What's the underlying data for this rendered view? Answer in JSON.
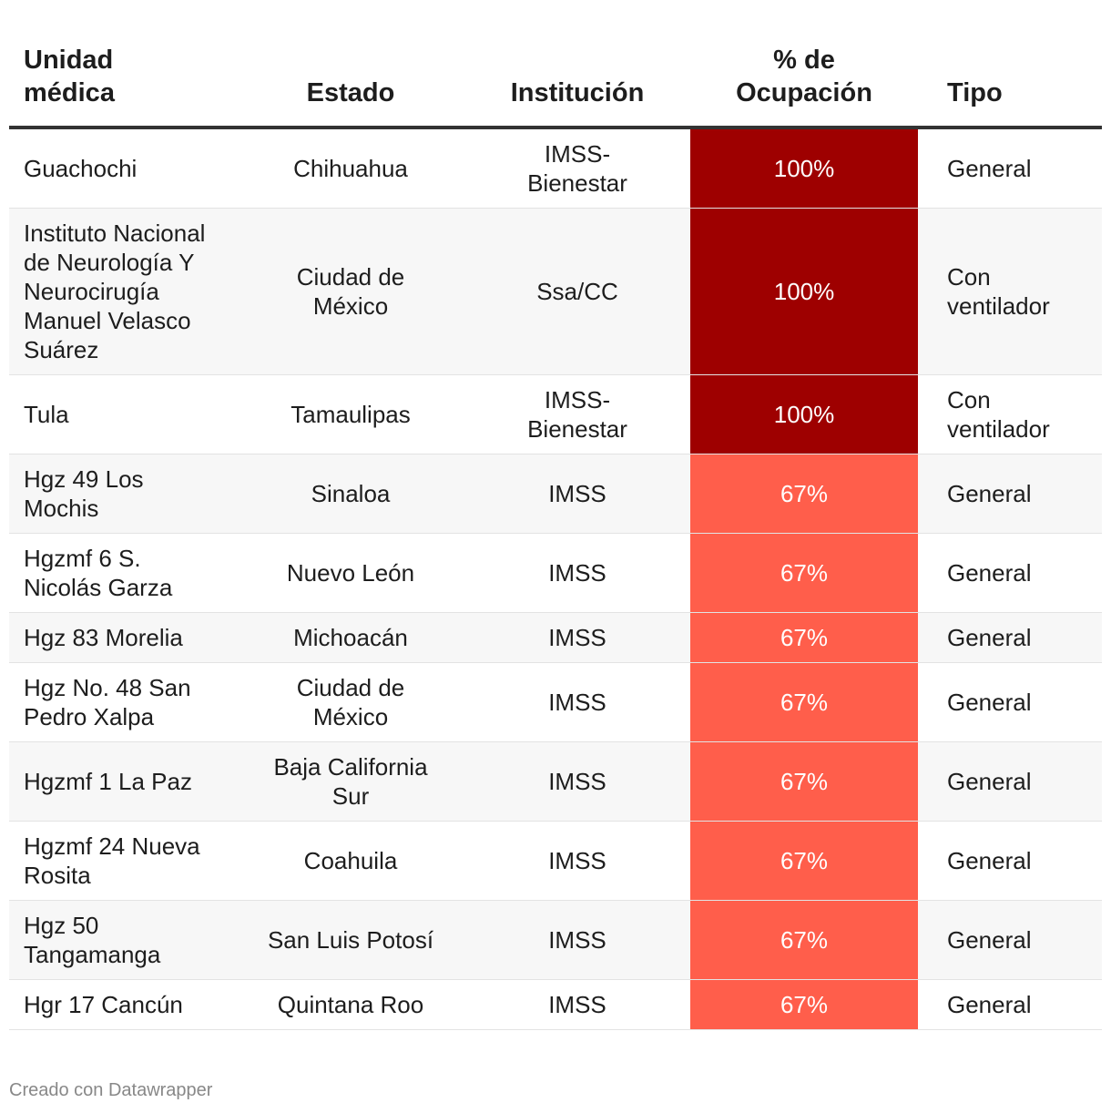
{
  "chart_data": {
    "type": "table",
    "columns": [
      "Unidad médica",
      "Estado",
      "Institución",
      "% de Ocupación",
      "Tipo"
    ],
    "rows": [
      {
        "unidad": "Guachochi",
        "estado": "Chihuahua",
        "institucion": "IMSS-Bienestar",
        "ocupacion": 100,
        "ocupacion_label": "100%",
        "tipo": "General"
      },
      {
        "unidad": "Instituto Nacional de Neurología Y Neurocirugía Manuel Velasco Suárez",
        "estado": "Ciudad de México",
        "institucion": "Ssa/CC",
        "ocupacion": 100,
        "ocupacion_label": "100%",
        "tipo": "Con ventilador"
      },
      {
        "unidad": "Tula",
        "estado": "Tamaulipas",
        "institucion": "IMSS-Bienestar",
        "ocupacion": 100,
        "ocupacion_label": "100%",
        "tipo": "Con ventilador"
      },
      {
        "unidad": "Hgz 49 Los Mochis",
        "estado": "Sinaloa",
        "institucion": "IMSS",
        "ocupacion": 67,
        "ocupacion_label": "67%",
        "tipo": "General"
      },
      {
        "unidad": "Hgzmf 6 S. Nicolás Garza",
        "estado": "Nuevo León",
        "institucion": "IMSS",
        "ocupacion": 67,
        "ocupacion_label": "67%",
        "tipo": "General"
      },
      {
        "unidad": "Hgz 83 Morelia",
        "estado": "Michoacán",
        "institucion": "IMSS",
        "ocupacion": 67,
        "ocupacion_label": "67%",
        "tipo": "General"
      },
      {
        "unidad": "Hgz No. 48 San Pedro Xalpa",
        "estado": "Ciudad de México",
        "institucion": "IMSS",
        "ocupacion": 67,
        "ocupacion_label": "67%",
        "tipo": "General"
      },
      {
        "unidad": "Hgzmf 1 La Paz",
        "estado": "Baja California Sur",
        "institucion": "IMSS",
        "ocupacion": 67,
        "ocupacion_label": "67%",
        "tipo": "General"
      },
      {
        "unidad": "Hgzmf 24 Nueva Rosita",
        "estado": "Coahuila",
        "institucion": "IMSS",
        "ocupacion": 67,
        "ocupacion_label": "67%",
        "tipo": "General"
      },
      {
        "unidad": "Hgz 50 Tangamanga",
        "estado": "San Luis Potosí",
        "institucion": "IMSS",
        "ocupacion": 67,
        "ocupacion_label": "67%",
        "tipo": "General"
      },
      {
        "unidad": "Hgr 17 Cancún",
        "estado": "Quintana Roo",
        "institucion": "IMSS",
        "ocupacion": 67,
        "ocupacion_label": "67%",
        "tipo": "General"
      }
    ]
  },
  "colors": {
    "high": "#9e0000",
    "medium": "#ff5e4b"
  },
  "footer": {
    "credit": "Creado con Datawrapper"
  }
}
